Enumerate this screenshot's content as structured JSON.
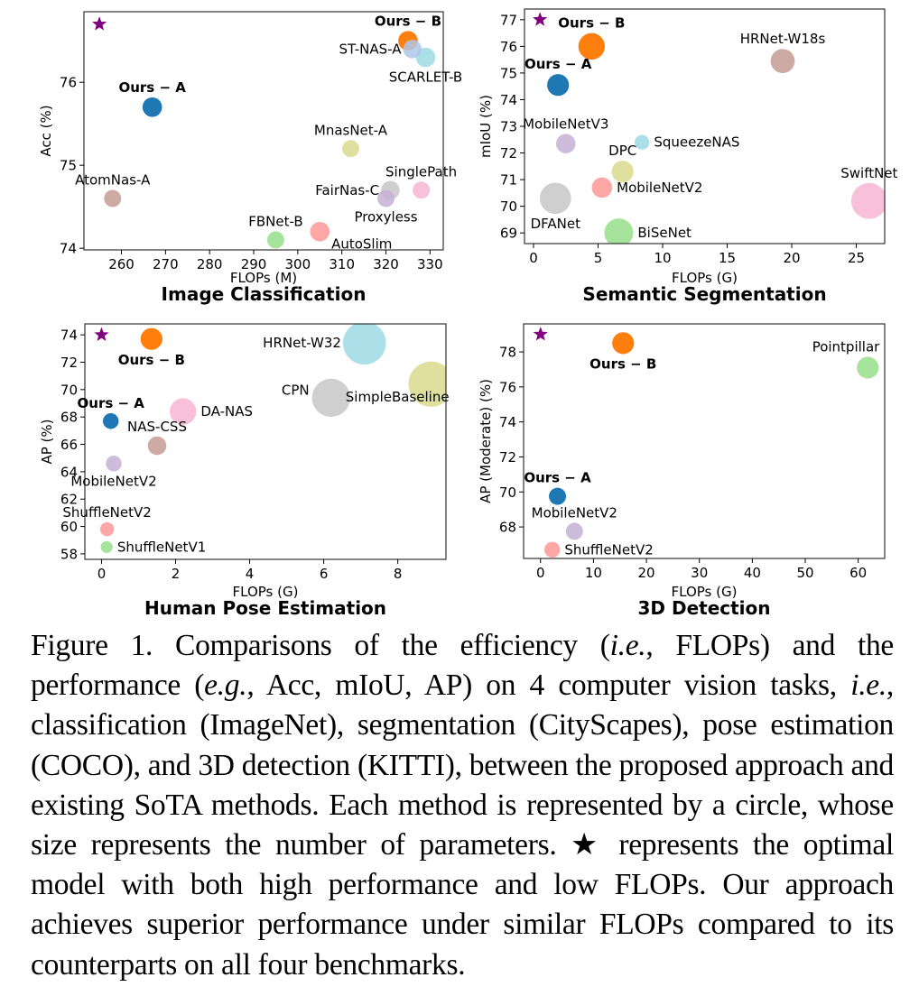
{
  "chart_data": [
    {
      "type": "scatter",
      "title": "Image Classification",
      "xlabel": "FLOPs (M)",
      "ylabel": "Acc (%)",
      "xlim": [
        251.5,
        333
      ],
      "ylim": [
        73.98,
        76.85
      ],
      "xticks": [
        260,
        270,
        280,
        290,
        300,
        310,
        320,
        330
      ],
      "yticks": [
        74,
        75,
        76
      ],
      "grid": false,
      "optimal_star": {
        "x": 255,
        "y": 76.7,
        "color": "#800080"
      },
      "points": [
        {
          "name": "Ours − A",
          "x": 267,
          "y": 75.7,
          "size": 3,
          "color": "#1f77b4",
          "bold": true,
          "label_pos": "above"
        },
        {
          "name": "AtomNas-A",
          "x": 258,
          "y": 74.6,
          "size": 2.5,
          "color": "#c49c94",
          "bold": false,
          "label_pos": "above"
        },
        {
          "name": "FBNet-B",
          "x": 295,
          "y": 74.1,
          "size": 2.5,
          "color": "#98df8a",
          "bold": false,
          "label_pos": "above"
        },
        {
          "name": "AutoSlim",
          "x": 305,
          "y": 74.2,
          "size": 3,
          "color": "#ff9896",
          "bold": false,
          "label_pos": "below-right"
        },
        {
          "name": "MnasNet-A",
          "x": 312,
          "y": 75.2,
          "size": 2.5,
          "color": "#dbdb8d",
          "bold": false,
          "label_pos": "above"
        },
        {
          "name": "Proxyless",
          "x": 320,
          "y": 74.6,
          "size": 2.5,
          "color": "#c5b0d5",
          "bold": false,
          "label_pos": "below"
        },
        {
          "name": "FairNas-C",
          "x": 321,
          "y": 74.7,
          "size": 2.8,
          "color": "#c7c7c7",
          "bold": false,
          "label_pos": "left"
        },
        {
          "name": "SinglePath",
          "x": 328,
          "y": 74.7,
          "size": 2.5,
          "color": "#f7b6d2",
          "bold": false,
          "label_pos": "above"
        },
        {
          "name": "ST-NAS-A",
          "x": 326,
          "y": 76.4,
          "size": 2.8,
          "color": "#aec7e8",
          "bold": false,
          "label_pos": "left"
        },
        {
          "name": "SCARLET-B",
          "x": 329,
          "y": 76.3,
          "size": 3,
          "color": "#9edae5",
          "bold": false,
          "label_pos": "below"
        },
        {
          "name": "Ours − B",
          "x": 325,
          "y": 76.5,
          "size": 3,
          "color": "#ff7f0e",
          "bold": true,
          "label_pos": "above"
        }
      ]
    },
    {
      "type": "scatter",
      "title": "Semantic Segmentation",
      "xlabel": "FLOPs (G)",
      "ylabel": "mIoU (%)",
      "xlim": [
        -0.7,
        27.2
      ],
      "ylim": [
        68.6,
        77.4
      ],
      "xticks": [
        0,
        5,
        10,
        15,
        20,
        25
      ],
      "yticks": [
        69,
        70,
        71,
        72,
        73,
        74,
        75,
        76,
        77
      ],
      "grid": false,
      "optimal_star": {
        "x": 0.5,
        "y": 77.0,
        "color": "#800080"
      },
      "points": [
        {
          "name": "Ours − B",
          "x": 4.5,
          "y": 76.0,
          "size": 4.5,
          "color": "#ff7f0e",
          "bold": true,
          "label_pos": "above"
        },
        {
          "name": "Ours − A",
          "x": 1.9,
          "y": 74.55,
          "size": 3.5,
          "color": "#1f77b4",
          "bold": true,
          "label_pos": "above"
        },
        {
          "name": "HRNet-W18s",
          "x": 19.3,
          "y": 75.45,
          "size": 4,
          "color": "#c49c94",
          "bold": false,
          "label_pos": "above"
        },
        {
          "name": "MobileNetV3",
          "x": 2.5,
          "y": 72.35,
          "size": 3,
          "color": "#c5b0d5",
          "bold": false,
          "label_pos": "above"
        },
        {
          "name": "SqueezeNAS",
          "x": 8.4,
          "y": 72.4,
          "size": 2,
          "color": "#9edae5",
          "bold": false,
          "label_pos": "right"
        },
        {
          "name": "DPC",
          "x": 6.9,
          "y": 71.3,
          "size": 3.5,
          "color": "#dbdb8d",
          "bold": false,
          "label_pos": "above"
        },
        {
          "name": "MobileNetV2",
          "x": 5.3,
          "y": 70.7,
          "size": 3.2,
          "color": "#ff9896",
          "bold": false,
          "label_pos": "right"
        },
        {
          "name": "DFANet",
          "x": 1.7,
          "y": 70.3,
          "size": 5.5,
          "color": "#c7c7c7",
          "bold": false,
          "label_pos": "below"
        },
        {
          "name": "BiSeNet",
          "x": 6.6,
          "y": 69.0,
          "size": 5,
          "color": "#98df8a",
          "bold": false,
          "label_pos": "right"
        },
        {
          "name": "SwiftNet",
          "x": 26.0,
          "y": 70.2,
          "size": 6.5,
          "color": "#f7b6d2",
          "bold": false,
          "label_pos": "above"
        }
      ]
    },
    {
      "type": "scatter",
      "title": "Human Pose Estimation",
      "xlabel": "FLOPs (G)",
      "ylabel": "AP (%)",
      "xlim": [
        -0.45,
        9.3
      ],
      "ylim": [
        57.6,
        74.8
      ],
      "xticks": [
        0,
        2,
        4,
        6,
        8
      ],
      "yticks": [
        58,
        60,
        62,
        64,
        66,
        68,
        70,
        72,
        74
      ],
      "grid": false,
      "optimal_star": {
        "x": 0,
        "y": 74.0,
        "color": "#800080"
      },
      "points": [
        {
          "name": "Ours − B",
          "x": 1.35,
          "y": 73.7,
          "size": 3.5,
          "color": "#ff7f0e",
          "bold": true,
          "label_pos": "below"
        },
        {
          "name": "HRNet-W32",
          "x": 7.1,
          "y": 73.4,
          "size": 8,
          "color": "#9edae5",
          "bold": false,
          "label_pos": "left"
        },
        {
          "name": "SimpleBaseline",
          "x": 8.9,
          "y": 70.4,
          "size": 8.5,
          "color": "#dbdb8d",
          "bold": false,
          "label_pos": "below-left"
        },
        {
          "name": "CPN",
          "x": 6.2,
          "y": 69.4,
          "size": 7,
          "color": "#c7c7c7",
          "bold": false,
          "label_pos": "left-above"
        },
        {
          "name": "DA-NAS",
          "x": 2.2,
          "y": 68.4,
          "size": 4.5,
          "color": "#f7b6d2",
          "bold": false,
          "label_pos": "right"
        },
        {
          "name": "Ours − A",
          "x": 0.25,
          "y": 67.7,
          "size": 2.2,
          "color": "#1f77b4",
          "bold": true,
          "label_pos": "above"
        },
        {
          "name": "NAS-CSS",
          "x": 1.5,
          "y": 65.9,
          "size": 2.8,
          "color": "#c49c94",
          "bold": false,
          "label_pos": "above"
        },
        {
          "name": "MobileNetV2",
          "x": 0.33,
          "y": 64.6,
          "size": 2.2,
          "color": "#c5b0d5",
          "bold": false,
          "label_pos": "below"
        },
        {
          "name": "ShuffleNetV2",
          "x": 0.15,
          "y": 59.8,
          "size": 1.8,
          "color": "#ff9896",
          "bold": false,
          "label_pos": "above"
        },
        {
          "name": "ShuffleNetV1",
          "x": 0.14,
          "y": 58.5,
          "size": 1.4,
          "color": "#98df8a",
          "bold": false,
          "label_pos": "right"
        }
      ]
    },
    {
      "type": "scatter",
      "title": "3D Detection",
      "xlabel": "FLOPs (G)",
      "ylabel": "AP (Moderate) (%)",
      "xlim": [
        -3.2,
        65
      ],
      "ylim": [
        66.2,
        79.6
      ],
      "xticks": [
        0,
        10,
        20,
        30,
        40,
        50,
        60
      ],
      "yticks": [
        68,
        70,
        72,
        74,
        76,
        78
      ],
      "grid": false,
      "optimal_star": {
        "x": 0,
        "y": 79.0,
        "color": "#800080"
      },
      "points": [
        {
          "name": "Ours − B",
          "x": 15.6,
          "y": 78.5,
          "size": 3.5,
          "color": "#ff7f0e",
          "bold": true,
          "label_pos": "below"
        },
        {
          "name": "Pointpillar",
          "x": 61.8,
          "y": 77.1,
          "size": 3.5,
          "color": "#98df8a",
          "bold": false,
          "label_pos": "above-left"
        },
        {
          "name": "Ours − A",
          "x": 3.2,
          "y": 69.75,
          "size": 2.5,
          "color": "#1f77b4",
          "bold": true,
          "label_pos": "above"
        },
        {
          "name": "MobileNetV2",
          "x": 6.4,
          "y": 67.75,
          "size": 2.5,
          "color": "#c5b0d5",
          "bold": false,
          "label_pos": "above"
        },
        {
          "name": "ShuffleNetV2",
          "x": 2.2,
          "y": 66.7,
          "size": 2.2,
          "color": "#ff9896",
          "bold": false,
          "label_pos": "right"
        }
      ]
    }
  ],
  "caption": {
    "figure_label": "Figure 1.",
    "segments": [
      {
        "t": " Comparisons of the efficiency (",
        "i": false
      },
      {
        "t": "i.e.",
        "i": true
      },
      {
        "t": ", FLOPs) and the performance (",
        "i": false
      },
      {
        "t": "e.g.",
        "i": true
      },
      {
        "t": ", Acc, mIoU, AP) on 4 computer vision tasks, ",
        "i": false
      },
      {
        "t": "i.e.",
        "i": true
      },
      {
        "t": ", classification (ImageNet), segmentation (CityScapes), pose estimation (COCO), and 3D detection (KITTI), between the proposed approach and existing SoTA methods. Each method is represented by a circle, whose size represents the number of parameters. ★ represents the optimal model with both high performance and low FLOPs. Our approach achieves superior performance under similar FLOPs compared to its counterparts on all four benchmarks.",
        "i": false
      }
    ]
  }
}
